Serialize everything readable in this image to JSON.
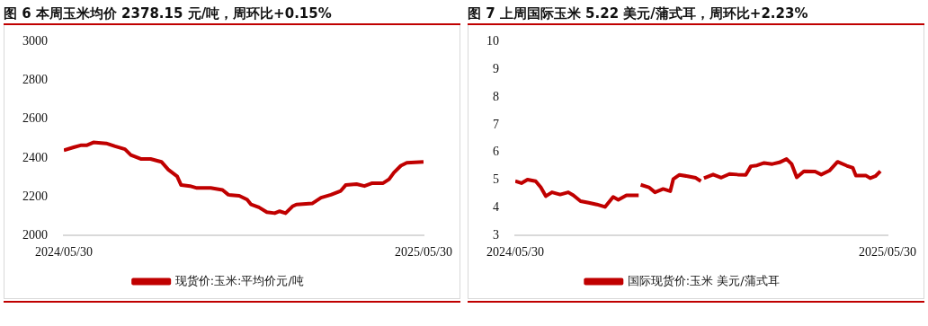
{
  "chart_data": [
    {
      "type": "line",
      "title": "图 6   本周玉米均价 2378.15 元/吨，周环比+0.15%",
      "x": [
        "2024-05-30",
        "2024-06-09",
        "2024-06-16",
        "2024-06-22",
        "2024-06-29",
        "2024-07-12",
        "2024-07-21",
        "2024-07-31",
        "2024-08-06",
        "2024-08-16",
        "2024-08-26",
        "2024-09-06",
        "2024-09-13",
        "2024-09-22",
        "2024-09-26",
        "2024-10-05",
        "2024-10-12",
        "2024-10-26",
        "2024-11-07",
        "2024-11-13",
        "2024-11-24",
        "2024-12-02",
        "2024-12-06",
        "2024-12-14",
        "2024-12-22",
        "2024-12-30",
        "2025-01-04",
        "2025-01-10",
        "2025-01-17",
        "2025-01-21",
        "2025-02-06",
        "2025-02-15",
        "2025-02-25",
        "2025-03-07",
        "2025-03-12",
        "2025-03-23",
        "2025-03-31",
        "2025-04-08",
        "2025-04-19",
        "2025-04-25",
        "2025-04-30",
        "2025-05-07",
        "2025-05-13",
        "2025-05-30"
      ],
      "series": [
        {
          "name": "现货价:玉米:平均价元/吨",
          "color": "#c00000",
          "values": [
            2440,
            2455,
            2465,
            2465,
            2480,
            2475,
            2460,
            2445,
            2415,
            2395,
            2395,
            2380,
            2340,
            2305,
            2260,
            2255,
            2245,
            2245,
            2235,
            2210,
            2205,
            2185,
            2160,
            2145,
            2120,
            2115,
            2125,
            2115,
            2150,
            2160,
            2165,
            2195,
            2210,
            2230,
            2260,
            2265,
            2255,
            2270,
            2270,
            2290,
            2325,
            2360,
            2375,
            2380
          ]
        }
      ],
      "xlim": [
        "2024-05-30",
        "2025-05-30"
      ],
      "xticks": [
        {
          "value": "2024-05-30",
          "label": "2024/05/30"
        },
        {
          "value": "2025-05-30",
          "label": "2025/05/30"
        }
      ],
      "ylim": [
        2000,
        3000
      ],
      "yticks": [
        2000,
        2200,
        2400,
        2600,
        2800,
        3000
      ],
      "legend": "bottom"
    },
    {
      "type": "line",
      "title": "图 7 上周国际玉米 5.22 美元/蒲式耳，周环比+2.23%",
      "x": [
        "2024-05-30",
        "2024-06-05",
        "2024-06-11",
        "2024-06-19",
        "2024-06-24",
        "2024-06-29",
        "2024-07-05",
        "2024-07-13",
        "2024-07-21",
        "2024-07-26",
        "2024-08-02",
        "2024-08-10",
        "2024-08-18",
        "2024-08-26",
        "2024-09-03",
        "2024-09-08",
        "2024-09-16",
        "2024-09-28",
        "2024-09-29",
        "2024-09-30",
        "2024-10-08",
        "2024-10-14",
        "2024-10-22",
        "2024-10-29",
        "2024-11-01",
        "2024-11-07",
        "2024-11-15",
        "2024-11-23",
        "2024-11-28",
        "2024-11-30",
        "2024-12-01",
        "2024-12-10",
        "2024-12-18",
        "2024-12-26",
        "2025-01-03",
        "2025-01-11",
        "2025-01-16",
        "2025-01-22",
        "2025-01-29",
        "2025-02-06",
        "2025-02-13",
        "2025-02-20",
        "2025-02-25",
        "2025-03-02",
        "2025-03-09",
        "2025-03-20",
        "2025-03-26",
        "2025-04-03",
        "2025-04-11",
        "2025-04-20",
        "2025-04-26",
        "2025-04-29",
        "2025-05-09",
        "2025-05-13",
        "2025-05-18",
        "2025-05-23"
      ],
      "series": [
        {
          "name": "国际现货价:玉米 美元/蒲式耳",
          "color": "#c00000",
          "values": [
            4.96,
            4.89,
            5.02,
            4.96,
            4.74,
            4.42,
            4.56,
            4.48,
            4.56,
            4.45,
            4.24,
            4.18,
            4.12,
            4.03,
            4.39,
            4.29,
            4.45,
            4.45,
            null,
            4.83,
            4.74,
            4.56,
            4.68,
            4.6,
            5.04,
            5.19,
            5.14,
            5.08,
            4.96,
            null,
            5.07,
            5.2,
            5.09,
            5.22,
            5.2,
            5.19,
            5.5,
            5.53,
            5.62,
            5.58,
            5.64,
            5.76,
            5.58,
            5.1,
            5.32,
            5.31,
            5.2,
            5.34,
            5.66,
            5.52,
            5.44,
            5.16,
            5.16,
            5.07,
            5.14,
            5.32
          ]
        }
      ],
      "xlim": [
        "2024-05-30",
        "2025-05-30"
      ],
      "xticks": [
        {
          "value": "2024-05-30",
          "label": "2024/05/30"
        },
        {
          "value": "2025-05-30",
          "label": "2025/05/30"
        }
      ],
      "ylim": [
        3,
        10
      ],
      "yticks": [
        3,
        4,
        5,
        6,
        7,
        8,
        9,
        10
      ],
      "legend": "bottom"
    }
  ]
}
